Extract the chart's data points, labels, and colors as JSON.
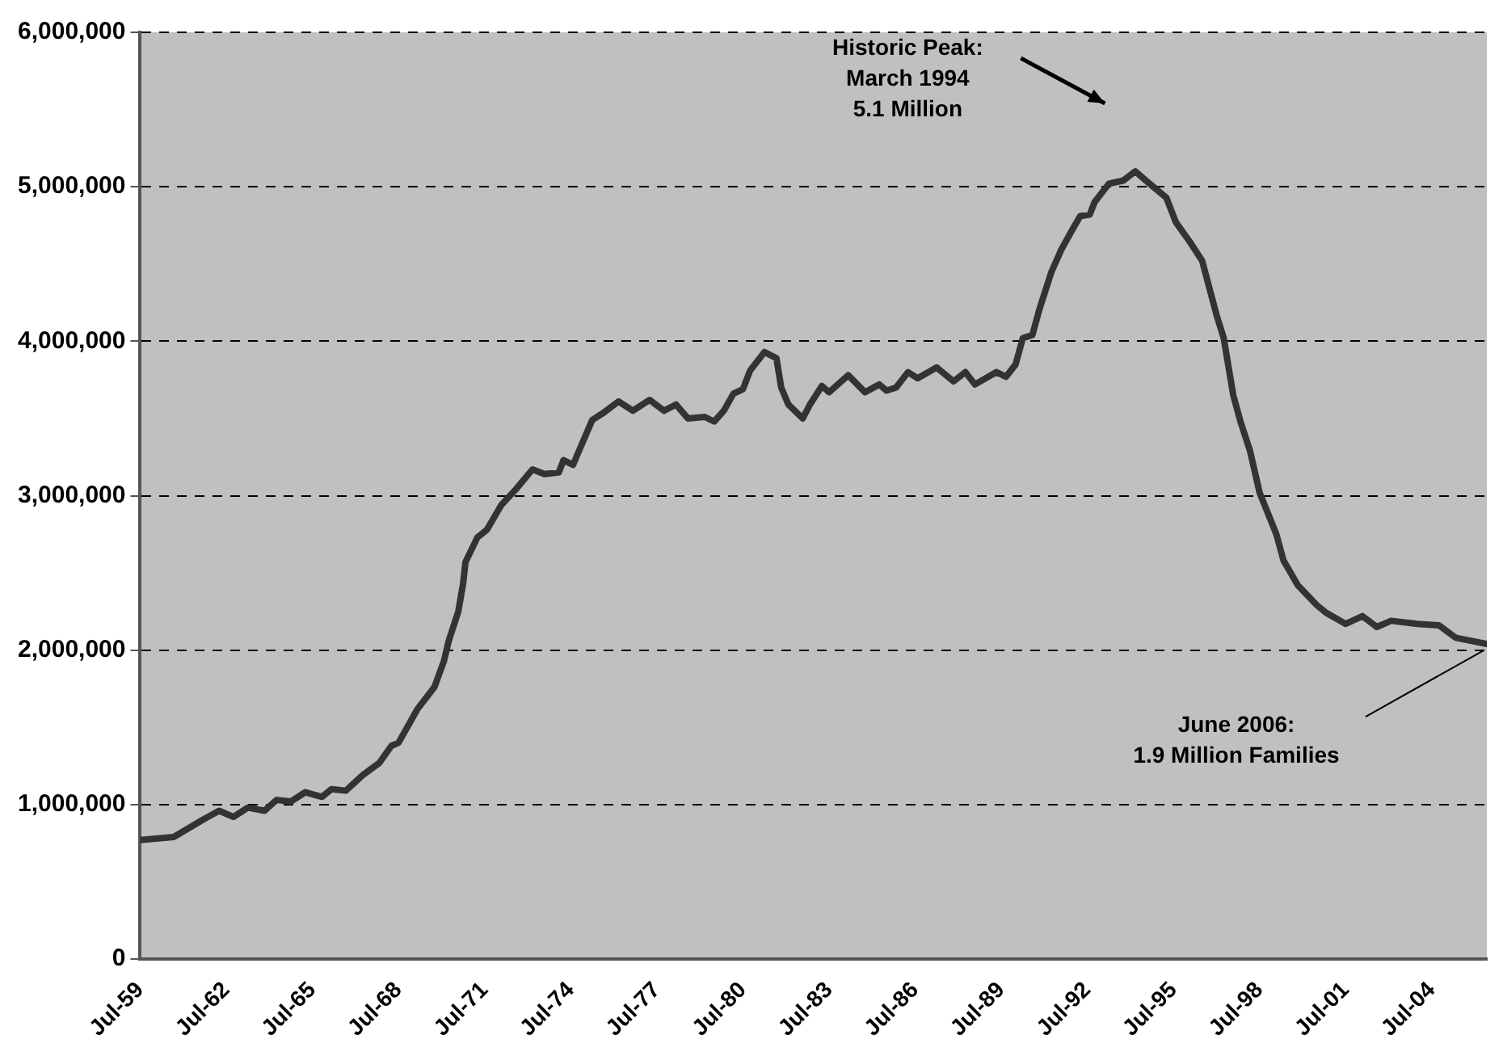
{
  "chart_data": {
    "type": "line",
    "x": [
      "1959-07",
      "1960-09",
      "1961-09",
      "1962-04",
      "1962-10",
      "1963-04",
      "1963-11",
      "1964-04",
      "1964-10",
      "1965-04",
      "1965-11",
      "1966-03",
      "1966-09",
      "1967-04",
      "1967-11",
      "1968-04",
      "1968-07",
      "1969-03",
      "1969-10",
      "1970-02",
      "1970-04",
      "1970-08",
      "1970-10",
      "1970-11",
      "1971-04",
      "1971-08",
      "1972-02",
      "1972-08",
      "1973-03",
      "1973-08",
      "1974-02",
      "1974-04",
      "1974-08",
      "1974-11",
      "1975-04",
      "1975-09",
      "1976-03",
      "1976-09",
      "1977-04",
      "1977-10",
      "1978-03",
      "1978-08",
      "1979-03",
      "1979-07",
      "1979-11",
      "1980-03",
      "1980-07",
      "1980-10",
      "1981-04",
      "1981-09",
      "1981-11",
      "1982-02",
      "1982-08",
      "1982-11",
      "1983-04",
      "1983-07",
      "1984-03",
      "1984-10",
      "1985-04",
      "1985-07",
      "1985-11",
      "1986-04",
      "1986-08",
      "1987-04",
      "1987-11",
      "1988-04",
      "1988-08",
      "1989-05",
      "1989-09",
      "1990-01",
      "1990-04",
      "1990-08",
      "1990-11",
      "1991-04",
      "1991-08",
      "1992-01",
      "1992-04",
      "1992-08",
      "1992-10",
      "1993-04",
      "1993-10",
      "1994-03",
      "1994-09",
      "1995-04",
      "1995-08",
      "1996-02",
      "1996-07",
      "1997-01",
      "1997-04",
      "1997-08",
      "1997-11",
      "1998-03",
      "1998-07",
      "1999-02",
      "1999-05",
      "1999-11",
      "2000-07",
      "2000-11",
      "2001-07",
      "2002-02",
      "2002-08",
      "2003-02",
      "2004-01",
      "2004-10",
      "2005-05",
      "2006-06"
    ],
    "series": [
      {
        "color": "#333333",
        "values": [
          770000,
          790000,
          900000,
          960000,
          920000,
          980000,
          960000,
          1030000,
          1020000,
          1080000,
          1050000,
          1100000,
          1090000,
          1190000,
          1270000,
          1380000,
          1400000,
          1620000,
          1760000,
          1930000,
          2060000,
          2250000,
          2430000,
          2570000,
          2730000,
          2780000,
          2940000,
          3040000,
          3170000,
          3140000,
          3150000,
          3230000,
          3200000,
          3310000,
          3490000,
          3540000,
          3610000,
          3550000,
          3620000,
          3550000,
          3590000,
          3500000,
          3510000,
          3480000,
          3550000,
          3660000,
          3690000,
          3810000,
          3930000,
          3890000,
          3700000,
          3590000,
          3500000,
          3590000,
          3710000,
          3670000,
          3780000,
          3670000,
          3720000,
          3680000,
          3700000,
          3800000,
          3760000,
          3830000,
          3740000,
          3800000,
          3720000,
          3800000,
          3770000,
          3850000,
          4020000,
          4040000,
          4210000,
          4450000,
          4590000,
          4730000,
          4810000,
          4820000,
          4900000,
          5020000,
          5040000,
          5100000,
          5020000,
          4930000,
          4770000,
          4640000,
          4520000,
          4170000,
          4020000,
          3650000,
          3480000,
          3290000,
          3020000,
          2750000,
          2580000,
          2420000,
          2290000,
          2240000,
          2170000,
          2220000,
          2150000,
          2190000,
          2170000,
          2160000,
          2080000,
          2040000
        ]
      }
    ],
    "xlim": [
      "1959-07",
      "2006-06"
    ],
    "xticks": [
      {
        "value": "1959-07",
        "label": "Jul-59"
      },
      {
        "value": "1962-07",
        "label": "Jul-62"
      },
      {
        "value": "1965-07",
        "label": "Jul-65"
      },
      {
        "value": "1968-07",
        "label": "Jul-68"
      },
      {
        "value": "1971-07",
        "label": "Jul-71"
      },
      {
        "value": "1974-07",
        "label": "Jul-74"
      },
      {
        "value": "1977-07",
        "label": "Jul-77"
      },
      {
        "value": "1980-07",
        "label": "Jul-80"
      },
      {
        "value": "1983-07",
        "label": "Jul-83"
      },
      {
        "value": "1986-07",
        "label": "Jul-86"
      },
      {
        "value": "1989-07",
        "label": "Jul-89"
      },
      {
        "value": "1992-07",
        "label": "Jul-92"
      },
      {
        "value": "1995-07",
        "label": "Jul-95"
      },
      {
        "value": "1998-07",
        "label": "Jul-98"
      },
      {
        "value": "2001-07",
        "label": "Jul-01"
      },
      {
        "value": "2004-07",
        "label": "Jul-04"
      }
    ],
    "ylim": [
      0,
      6000000
    ],
    "yticks": [
      0,
      {
        "value": 1000000,
        "label": "1,000,000"
      },
      {
        "value": 2000000,
        "label": "2,000,000"
      },
      {
        "value": 3000000,
        "label": "3,000,000"
      },
      {
        "value": 4000000,
        "label": "4,000,000"
      },
      {
        "value": 5000000,
        "label": "5,000,000"
      },
      {
        "value": 6000000,
        "label": "6,000,000"
      }
    ],
    "grid": "y",
    "legend": false,
    "marker": "none",
    "line_style": "solid",
    "annotations": [
      "Historic Peak:\nMarch 1994\n5.1 Million",
      {
        "text": "June 2006:\n1.9 Million Families",
        "x": "2006-06",
        "y": 2040000
      }
    ]
  }
}
